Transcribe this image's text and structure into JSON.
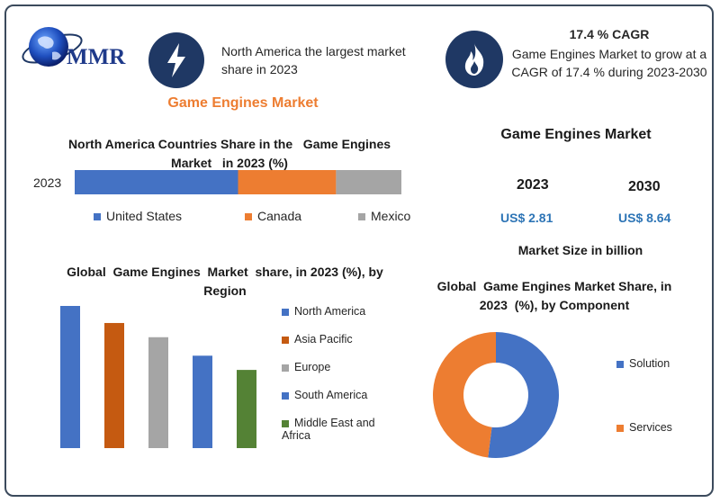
{
  "brand": {
    "logo_text": "MMR"
  },
  "header": {
    "highlight_text": "North America the largest market share in 2023",
    "cagr_title": "17.4 % CAGR",
    "cagr_text": "Game Engines Market to grow at a CAGR of 17.4 % during 2023-2030",
    "market_title": "Game Engines Market"
  },
  "colors": {
    "navy": "#1f3864",
    "orange_title": "#ed7d31",
    "blue": "#4472c4",
    "orange": "#ed7d31",
    "gray": "#a5a5a5",
    "rust": "#c55a11",
    "green": "#548235",
    "value_blue": "#2e75b6"
  },
  "market_size": {
    "title": "Game Engines Market",
    "years": [
      "2023",
      "2030"
    ],
    "values": [
      "US$ 2.81",
      "US$ 8.64"
    ],
    "unit_label": "Market Size in billion"
  },
  "chart_data": [
    {
      "type": "bar",
      "orientation": "horizontal-stacked",
      "title": "North America Countries Share in the   Game Engines Market   in 2023 (%)",
      "categories": [
        "2023"
      ],
      "series": [
        {
          "name": "United States",
          "values": [
            50
          ],
          "color": "#4472c4"
        },
        {
          "name": "Canada",
          "values": [
            30
          ],
          "color": "#ed7d31"
        },
        {
          "name": "Mexico",
          "values": [
            20
          ],
          "color": "#a5a5a5"
        }
      ],
      "xlim": [
        0,
        100
      ],
      "legend": "bottom"
    },
    {
      "type": "bar",
      "title": "Global  Game Engines  Market  share, in 2023 (%), by Region",
      "categories": [
        "North America",
        "Asia Pacific",
        "Europe",
        "South America",
        "Middle East and Africa"
      ],
      "values": [
        100,
        88,
        78,
        65,
        55
      ],
      "colors": [
        "#4472c4",
        "#c55a11",
        "#a5a5a5",
        "#4472c4",
        "#548235"
      ],
      "ylim": [
        0,
        100
      ],
      "grid": false,
      "legend": "right"
    },
    {
      "type": "pie",
      "style": "donut",
      "title": "Global  Game Engines Market Share, in 2023  (%), by Component",
      "categories": [
        "Solution",
        "Services"
      ],
      "values": [
        52,
        48
      ],
      "colors": [
        "#4472c4",
        "#ed7d31"
      ],
      "legend": "right"
    }
  ]
}
